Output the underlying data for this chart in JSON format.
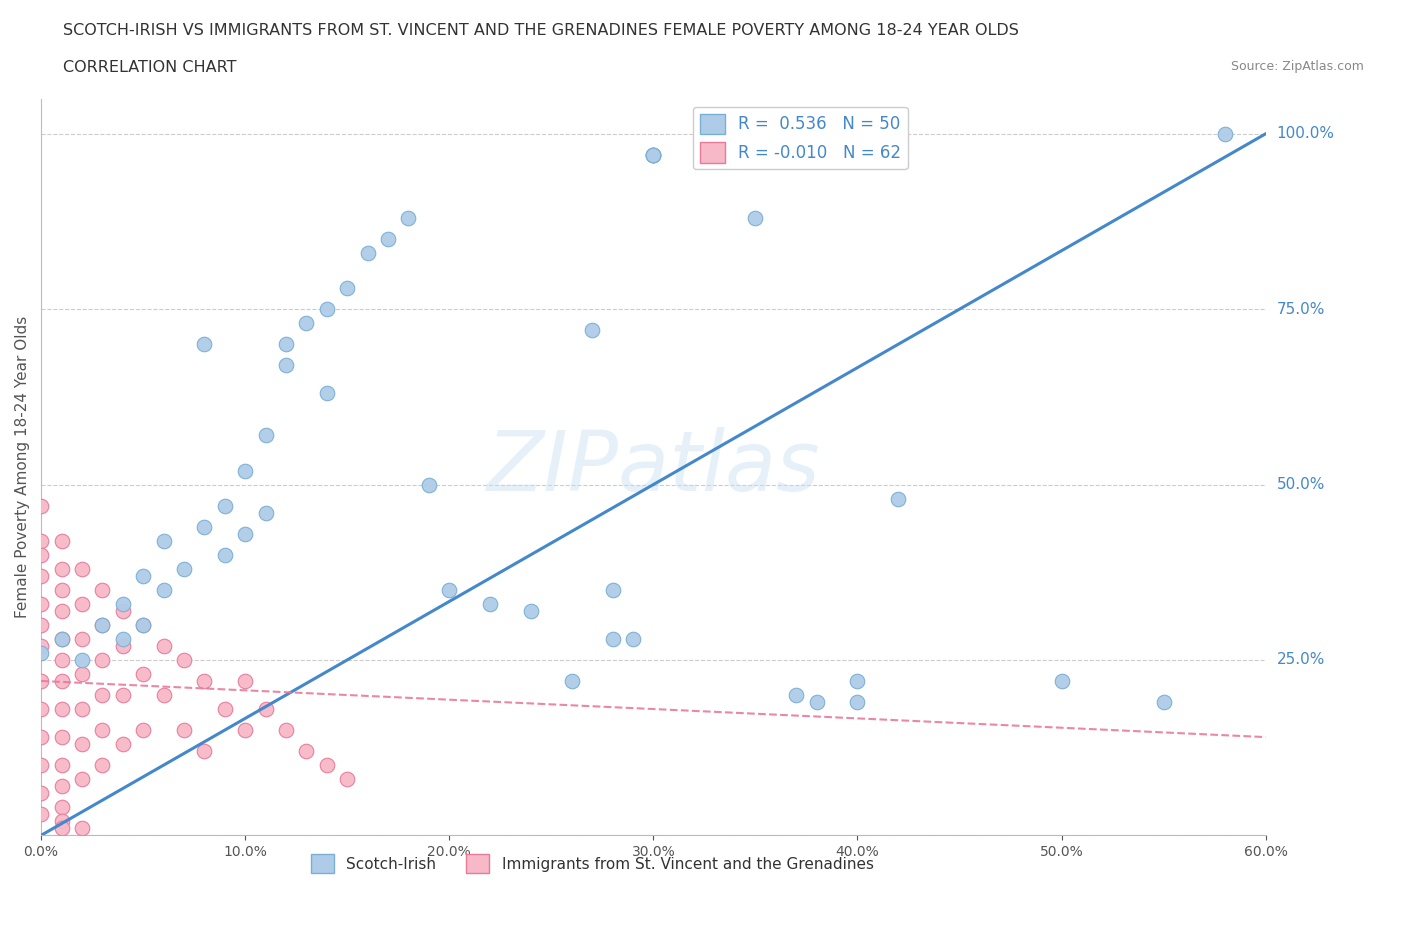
{
  "title": "SCOTCH-IRISH VS IMMIGRANTS FROM ST. VINCENT AND THE GRENADINES FEMALE POVERTY AMONG 18-24 YEAR OLDS",
  "subtitle": "CORRELATION CHART",
  "source": "Source: ZipAtlas.com",
  "ylabel": "Female Poverty Among 18-24 Year Olds",
  "xlim": [
    0.0,
    0.6
  ],
  "ylim": [
    0.0,
    1.05
  ],
  "watermark": "ZIPatlas",
  "blue_R": 0.536,
  "blue_N": 50,
  "pink_R": -0.01,
  "pink_N": 62,
  "blue_color": "#aecce8",
  "pink_color": "#f7b8c8",
  "blue_edge": "#7aafd4",
  "pink_edge": "#e87a9a",
  "trend_blue": "#4488cc",
  "trend_pink": "#e87a9a",
  "legend_label_blue": "Scotch-Irish",
  "legend_label_pink": "Immigrants from St. Vincent and the Grenadines",
  "xticks": [
    0.0,
    0.1,
    0.2,
    0.3,
    0.4,
    0.5,
    0.6
  ],
  "ytick_labels": {
    "0.25": "25.0%",
    "0.50": "50.0%",
    "0.75": "75.0%",
    "1.00": "100.0%"
  },
  "blue_scatter_x": [
    0.0,
    0.01,
    0.02,
    0.03,
    0.04,
    0.04,
    0.05,
    0.05,
    0.06,
    0.06,
    0.07,
    0.08,
    0.08,
    0.09,
    0.09,
    0.1,
    0.1,
    0.11,
    0.11,
    0.12,
    0.12,
    0.13,
    0.14,
    0.14,
    0.15,
    0.16,
    0.17,
    0.18,
    0.19,
    0.2,
    0.22,
    0.24,
    0.26,
    0.27,
    0.28,
    0.28,
    0.29,
    0.3,
    0.3,
    0.3,
    0.3,
    0.35,
    0.37,
    0.38,
    0.4,
    0.4,
    0.42,
    0.5,
    0.55,
    0.58
  ],
  "blue_scatter_y": [
    0.26,
    0.28,
    0.25,
    0.3,
    0.28,
    0.33,
    0.3,
    0.37,
    0.35,
    0.42,
    0.38,
    0.7,
    0.44,
    0.4,
    0.47,
    0.43,
    0.52,
    0.46,
    0.57,
    0.7,
    0.67,
    0.73,
    0.63,
    0.75,
    0.78,
    0.83,
    0.85,
    0.88,
    0.5,
    0.35,
    0.33,
    0.32,
    0.22,
    0.72,
    0.28,
    0.35,
    0.28,
    0.97,
    0.97,
    0.97,
    0.97,
    0.88,
    0.2,
    0.19,
    0.19,
    0.22,
    0.48,
    0.22,
    0.19,
    1.0
  ],
  "pink_scatter_x": [
    0.0,
    0.0,
    0.0,
    0.0,
    0.0,
    0.0,
    0.0,
    0.0,
    0.0,
    0.0,
    0.0,
    0.0,
    0.0,
    0.01,
    0.01,
    0.01,
    0.01,
    0.01,
    0.01,
    0.01,
    0.01,
    0.01,
    0.01,
    0.01,
    0.01,
    0.01,
    0.02,
    0.02,
    0.02,
    0.02,
    0.02,
    0.02,
    0.02,
    0.03,
    0.03,
    0.03,
    0.03,
    0.03,
    0.03,
    0.04,
    0.04,
    0.04,
    0.04,
    0.05,
    0.05,
    0.05,
    0.06,
    0.06,
    0.07,
    0.07,
    0.08,
    0.08,
    0.09,
    0.1,
    0.1,
    0.11,
    0.12,
    0.13,
    0.14,
    0.15,
    0.01,
    0.02
  ],
  "pink_scatter_y": [
    0.47,
    0.42,
    0.4,
    0.37,
    0.33,
    0.3,
    0.27,
    0.22,
    0.18,
    0.14,
    0.1,
    0.06,
    0.03,
    0.42,
    0.38,
    0.35,
    0.32,
    0.28,
    0.25,
    0.22,
    0.18,
    0.14,
    0.1,
    0.07,
    0.04,
    0.02,
    0.38,
    0.33,
    0.28,
    0.23,
    0.18,
    0.13,
    0.08,
    0.35,
    0.3,
    0.25,
    0.2,
    0.15,
    0.1,
    0.32,
    0.27,
    0.2,
    0.13,
    0.3,
    0.23,
    0.15,
    0.27,
    0.2,
    0.25,
    0.15,
    0.22,
    0.12,
    0.18,
    0.22,
    0.15,
    0.18,
    0.15,
    0.12,
    0.1,
    0.08,
    0.01,
    0.01
  ],
  "blue_trend_x": [
    0.0,
    0.6
  ],
  "blue_trend_y": [
    0.0,
    1.0
  ],
  "pink_trend_x": [
    0.0,
    0.6
  ],
  "pink_trend_y": [
    0.22,
    0.14
  ]
}
